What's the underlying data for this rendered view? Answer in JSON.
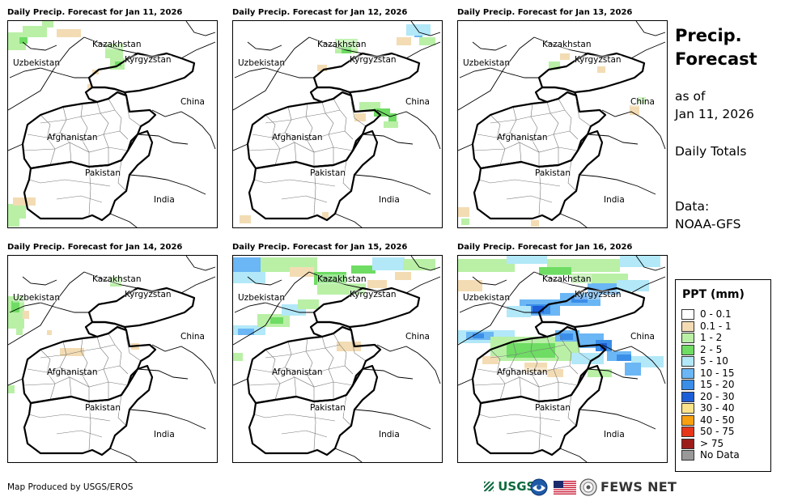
{
  "panels": [
    {
      "title": "Daily Precip. Forecast for Jan 11, 2026"
    },
    {
      "title": "Daily Precip. Forecast for Jan 12, 2026"
    },
    {
      "title": "Daily Precip. Forecast for Jan 13, 2026"
    },
    {
      "title": "Daily Precip. Forecast for Jan 14, 2026"
    },
    {
      "title": "Daily Precip. Forecast for Jan 15, 2026"
    },
    {
      "title": "Daily Precip. Forecast for Jan 16, 2026"
    }
  ],
  "map_labels": {
    "kazakhstan": "Kazakhstan",
    "uzbekistan": "Uzbekistan",
    "kyrgyzstan": "Kyrgyzstan",
    "china": "China",
    "afghanistan": "Afghanistan",
    "pakistan": "Pakistan",
    "india": "India"
  },
  "side": {
    "title_line1": "Precip.",
    "title_line2": "Forecast",
    "as_of_line1": "as of",
    "as_of_line2": "Jan 11, 2026",
    "daily_totals": "Daily Totals",
    "data_line1": "Data:",
    "data_line2": "NOAA-GFS"
  },
  "legend": {
    "title": "PPT (mm)",
    "items": [
      {
        "label": "0 - 0.1",
        "color": "#ffffff"
      },
      {
        "label": "0.1 - 1",
        "color": "#f3dcb4"
      },
      {
        "label": "1 - 2",
        "color": "#b9f0a6"
      },
      {
        "label": "2 - 5",
        "color": "#6fdc64"
      },
      {
        "label": "5 - 10",
        "color": "#b2e8f8"
      },
      {
        "label": "10 - 15",
        "color": "#6bb6f4"
      },
      {
        "label": "15 - 20",
        "color": "#3a8ee8"
      },
      {
        "label": "20 - 30",
        "color": "#1c5ed8"
      },
      {
        "label": "30 - 40",
        "color": "#fbe38a"
      },
      {
        "label": "40 - 50",
        "color": "#f8a00f"
      },
      {
        "label": "50 - 75",
        "color": "#e8361a"
      },
      {
        "label": "> 75",
        "color": "#9c1c1c"
      },
      {
        "label": "No Data",
        "color": "#999999"
      }
    ]
  },
  "credit": "Map Produced by USGS/EROS",
  "logos": {
    "usgs": "USGS",
    "fews": "FEWS NET"
  }
}
